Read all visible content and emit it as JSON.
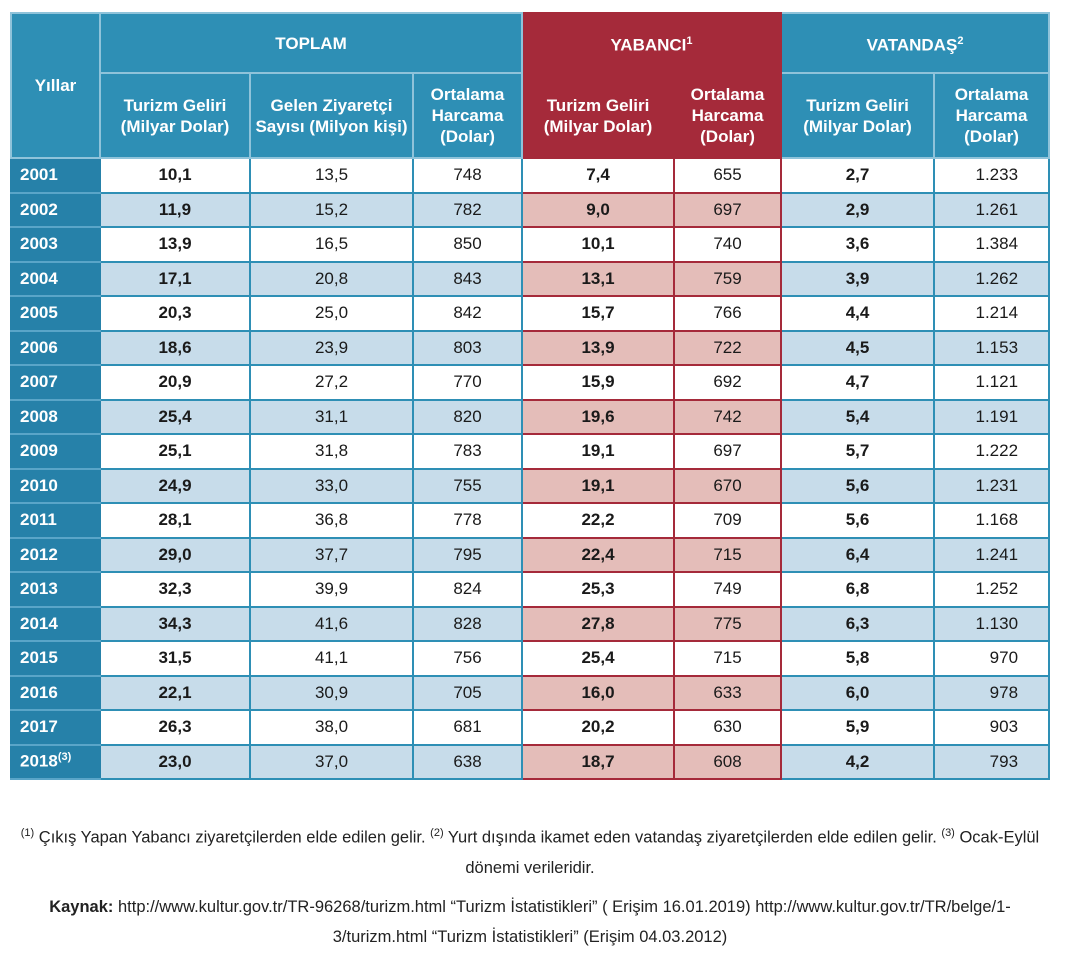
{
  "table": {
    "stub_header": "Yıllar",
    "groups": [
      {
        "title": "TOPLAM",
        "columns": [
          "Turizm Geliri (Milyar Dolar)",
          "Gelen Ziyaretçi Sayısı (Milyon kişi)",
          "Ortalama Harcama (Dolar)"
        ]
      },
      {
        "title": "YABANCI",
        "note": "1",
        "columns": [
          "Turizm Geliri (Milyar Dolar)",
          "Ortalama Harcama (Dolar)"
        ]
      },
      {
        "title": "VATANDAŞ",
        "note": "2",
        "columns": [
          "Turizm Geliri (Milyar Dolar)",
          "Ortalama Harcama (Dolar)"
        ]
      }
    ],
    "rows": [
      {
        "year": "2001",
        "values": [
          "10,1",
          "13,5",
          "748",
          "7,4",
          "655",
          "2,7",
          "1.233"
        ]
      },
      {
        "year": "2002",
        "values": [
          "11,9",
          "15,2",
          "782",
          "9,0",
          "697",
          "2,9",
          "1.261"
        ]
      },
      {
        "year": "2003",
        "values": [
          "13,9",
          "16,5",
          "850",
          "10,1",
          "740",
          "3,6",
          "1.384"
        ]
      },
      {
        "year": "2004",
        "values": [
          "17,1",
          "20,8",
          "843",
          "13,1",
          "759",
          "3,9",
          "1.262"
        ]
      },
      {
        "year": "2005",
        "values": [
          "20,3",
          "25,0",
          "842",
          "15,7",
          "766",
          "4,4",
          "1.214"
        ]
      },
      {
        "year": "2006",
        "values": [
          "18,6",
          "23,9",
          "803",
          "13,9",
          "722",
          "4,5",
          "1.153"
        ]
      },
      {
        "year": "2007",
        "values": [
          "20,9",
          "27,2",
          "770",
          "15,9",
          "692",
          "4,7",
          "1.121"
        ]
      },
      {
        "year": "2008",
        "values": [
          "25,4",
          "31,1",
          "820",
          "19,6",
          "742",
          "5,4",
          "1.191"
        ]
      },
      {
        "year": "2009",
        "values": [
          "25,1",
          "31,8",
          "783",
          "19,1",
          "697",
          "5,7",
          "1.222"
        ]
      },
      {
        "year": "2010",
        "values": [
          "24,9",
          "33,0",
          "755",
          "19,1",
          "670",
          "5,6",
          "1.231"
        ]
      },
      {
        "year": "2011",
        "values": [
          "28,1",
          "36,8",
          "778",
          "22,2",
          "709",
          "5,6",
          "1.168"
        ]
      },
      {
        "year": "2012",
        "values": [
          "29,0",
          "37,7",
          "795",
          "22,4",
          "715",
          "6,4",
          "1.241"
        ]
      },
      {
        "year": "2013",
        "values": [
          "32,3",
          "39,9",
          "824",
          "25,3",
          "749",
          "6,8",
          "1.252"
        ]
      },
      {
        "year": "2014",
        "values": [
          "34,3",
          "41,6",
          "828",
          "27,8",
          "775",
          "6,3",
          "1.130"
        ]
      },
      {
        "year": "2015",
        "values": [
          "31,5",
          "41,1",
          "756",
          "25,4",
          "715",
          "5,8",
          "970"
        ]
      },
      {
        "year": "2016",
        "values": [
          "22,1",
          "30,9",
          "705",
          "16,0",
          "633",
          "6,0",
          "978"
        ]
      },
      {
        "year": "2017",
        "values": [
          "26,3",
          "38,0",
          "681",
          "20,2",
          "630",
          "5,9",
          "903"
        ]
      },
      {
        "year": "2018",
        "note": "(3)",
        "values": [
          "23,0",
          "37,0",
          "638",
          "18,7",
          "608",
          "4,2",
          "793"
        ]
      }
    ]
  },
  "footnotes": [
    {
      "mark": "(1)",
      "text": "Çıkış Yapan Yabancı ziyaretçilerden elde edilen gelir."
    },
    {
      "mark": "(2)",
      "text": "Yurt dışında ikamet eden vatandaş ziyaretçilerden elde edilen gelir."
    },
    {
      "mark": "(3)",
      "text": "Ocak-Eylül dönemi verileridir."
    }
  ],
  "source": {
    "label": "Kaynak:",
    "text": "http://www.kultur.gov.tr/TR-96268/turizm.html “Turizm İstatistikleri” ( Erişim 16.01.2019) http://www.kultur.gov.tr/TR/belge/1-3/turizm.html “Turizm İstatistikleri” (Erişim 04.03.2012)"
  }
}
